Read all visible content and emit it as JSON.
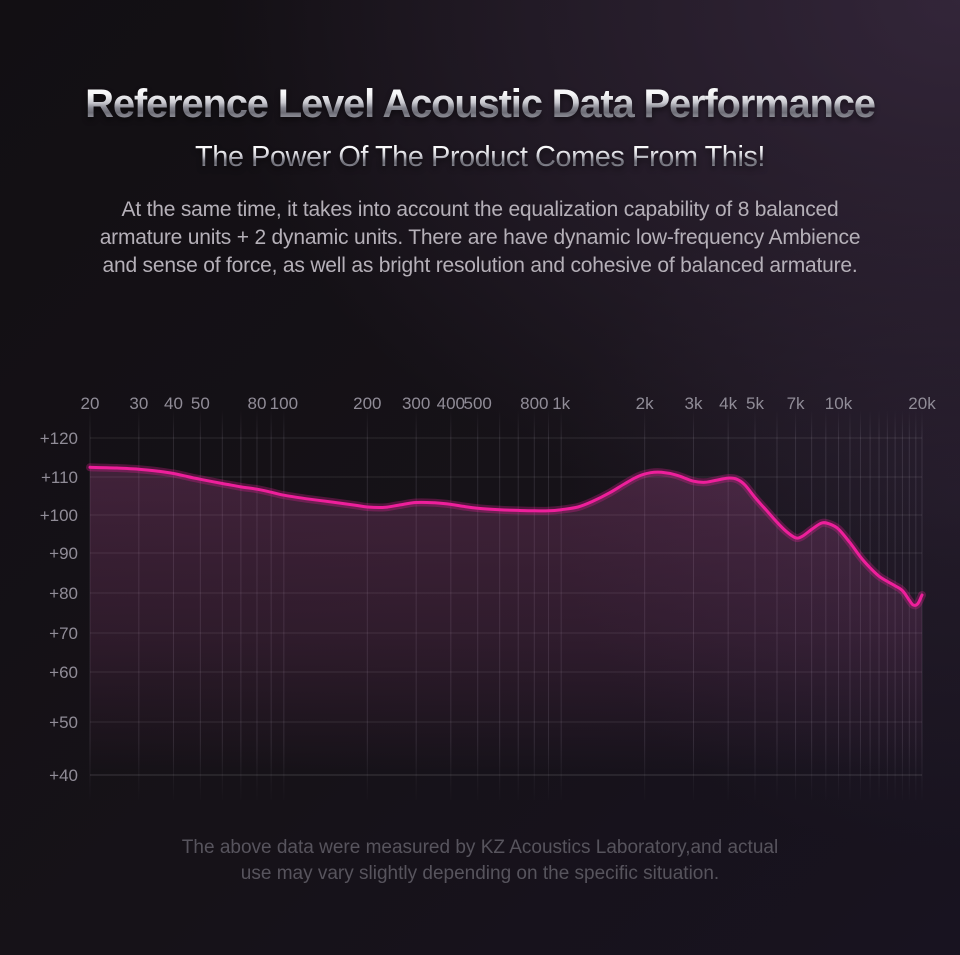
{
  "header": {
    "title": "Reference Level Acoustic Data Performance",
    "subtitle": "The Power Of The Product Comes From This!"
  },
  "intro": {
    "lines": [
      "At the same time, it takes into account the equalization capability of 8 balanced",
      "armature units + 2 dynamic units. There are have dynamic low-frequency Ambience",
      "and sense of force, as well as bright resolution and cohesive of balanced armature."
    ]
  },
  "footer": {
    "lines": [
      "The above data were measured by KZ Acoustics Laboratory,and actual",
      "use may vary slightly depending on the specific situation."
    ]
  },
  "colors": {
    "background": "#161218",
    "background_tint": "#3e2d46",
    "curve": "#ee1f9b",
    "curve_glow": "rgba(238,31,155,0.28)",
    "area_fill": "#d55bb0",
    "grid_horizontal": "rgba(255,255,255,0.10)",
    "grid_horizontal_bottom": "rgba(255,255,255,0.16)",
    "grid_vertical": "#cbc3d8",
    "axis_label": "#908c97"
  },
  "chart_data": {
    "type": "line",
    "title": "",
    "xlabel": "",
    "ylabel": "",
    "x_scale": "log",
    "xlim": [
      20,
      20000
    ],
    "ylim": [
      40,
      120
    ],
    "grid": true,
    "legend": false,
    "x_ticks": [
      {
        "label": "20",
        "f": 20
      },
      {
        "label": "30",
        "f": 30
      },
      {
        "label": "40",
        "f": 40
      },
      {
        "label": "50",
        "f": 50
      },
      {
        "label": "80",
        "f": 80
      },
      {
        "label": "100",
        "f": 100
      },
      {
        "label": "200",
        "f": 200
      },
      {
        "label": "300",
        "f": 300
      },
      {
        "label": "400",
        "f": 400
      },
      {
        "label": "500",
        "f": 500
      },
      {
        "label": "800",
        "f": 800
      },
      {
        "label": "1k",
        "f": 1000
      },
      {
        "label": "2k",
        "f": 2000
      },
      {
        "label": "3k",
        "f": 3000
      },
      {
        "label": "4k",
        "f": 4000
      },
      {
        "label": "5k",
        "f": 5000
      },
      {
        "label": "7k",
        "f": 7000
      },
      {
        "label": "10k",
        "f": 10000
      },
      {
        "label": "20k",
        "f": 20000
      }
    ],
    "y_ticks": [
      {
        "label": "+120",
        "db": 120
      },
      {
        "label": "+110",
        "db": 110
      },
      {
        "label": "+100",
        "db": 100
      },
      {
        "label": "+90",
        "db": 90
      },
      {
        "label": "+80",
        "db": 80
      },
      {
        "label": "+70",
        "db": 70
      },
      {
        "label": "+60",
        "db": 60
      },
      {
        "label": "+50",
        "db": 50
      },
      {
        "label": "+40",
        "db": 40
      }
    ],
    "series": [
      {
        "name": "frequency_response_db",
        "points": [
          [
            20,
            112.5
          ],
          [
            25,
            112.3
          ],
          [
            30,
            112.0
          ],
          [
            35,
            111.5
          ],
          [
            40,
            110.9
          ],
          [
            45,
            110.1
          ],
          [
            50,
            109.4
          ],
          [
            60,
            108.3
          ],
          [
            70,
            107.4
          ],
          [
            80,
            106.8
          ],
          [
            90,
            106.0
          ],
          [
            100,
            105.2
          ],
          [
            120,
            104.3
          ],
          [
            150,
            103.4
          ],
          [
            180,
            102.6
          ],
          [
            200,
            102.1
          ],
          [
            230,
            102.0
          ],
          [
            260,
            102.6
          ],
          [
            300,
            103.3
          ],
          [
            350,
            103.2
          ],
          [
            400,
            102.8
          ],
          [
            450,
            102.2
          ],
          [
            500,
            101.8
          ],
          [
            600,
            101.4
          ],
          [
            700,
            101.2
          ],
          [
            800,
            101.1
          ],
          [
            900,
            101.1
          ],
          [
            1000,
            101.4
          ],
          [
            1150,
            102.1
          ],
          [
            1300,
            103.6
          ],
          [
            1500,
            105.9
          ],
          [
            1700,
            108.3
          ],
          [
            1900,
            110.2
          ],
          [
            2100,
            111.1
          ],
          [
            2300,
            111.2
          ],
          [
            2600,
            110.5
          ],
          [
            3000,
            108.9
          ],
          [
            3300,
            108.6
          ],
          [
            3600,
            109.1
          ],
          [
            4000,
            109.7
          ],
          [
            4300,
            109.4
          ],
          [
            4600,
            107.9
          ],
          [
            5000,
            104.6
          ],
          [
            5500,
            101.2
          ],
          [
            6000,
            98.1
          ],
          [
            6500,
            95.6
          ],
          [
            7000,
            94.0
          ],
          [
            7400,
            94.4
          ],
          [
            8000,
            96.2
          ],
          [
            8700,
            97.9
          ],
          [
            9300,
            97.6
          ],
          [
            10000,
            96.3
          ],
          [
            11000,
            92.7
          ],
          [
            12000,
            89.0
          ],
          [
            13000,
            86.3
          ],
          [
            14000,
            84.2
          ],
          [
            15000,
            82.9
          ],
          [
            16000,
            81.8
          ],
          [
            17000,
            80.6
          ],
          [
            18000,
            78.2
          ],
          [
            18600,
            77.0
          ],
          [
            19300,
            77.3
          ],
          [
            20000,
            79.5
          ]
        ]
      }
    ]
  }
}
